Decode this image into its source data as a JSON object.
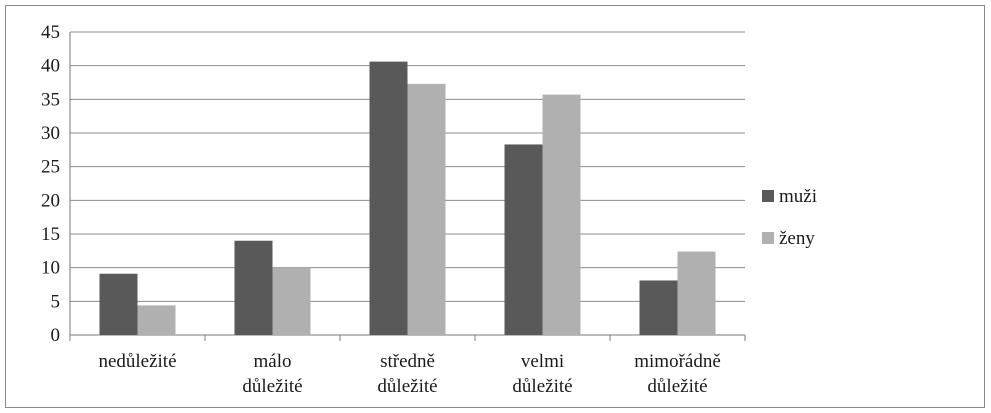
{
  "chart_data": {
    "type": "bar",
    "categories": [
      [
        "nedůležité"
      ],
      [
        "málo",
        "důležité"
      ],
      [
        "středně",
        "důležité"
      ],
      [
        "velmi",
        "důležité"
      ],
      [
        "mimořádně",
        "důležité"
      ]
    ],
    "series": [
      {
        "name": "muži",
        "values": [
          9.1,
          14.0,
          40.6,
          28.3,
          8.1
        ],
        "color": "#595959"
      },
      {
        "name": "ženy",
        "values": [
          4.4,
          10.0,
          37.3,
          35.7,
          12.4
        ],
        "color": "#b0b0b0"
      }
    ],
    "ylim": [
      0,
      45
    ],
    "yticks": [
      0,
      5,
      10,
      15,
      20,
      25,
      30,
      35,
      40,
      45
    ],
    "grid": true,
    "legend_position": "right",
    "title": "",
    "xlabel": "",
    "ylabel": ""
  }
}
